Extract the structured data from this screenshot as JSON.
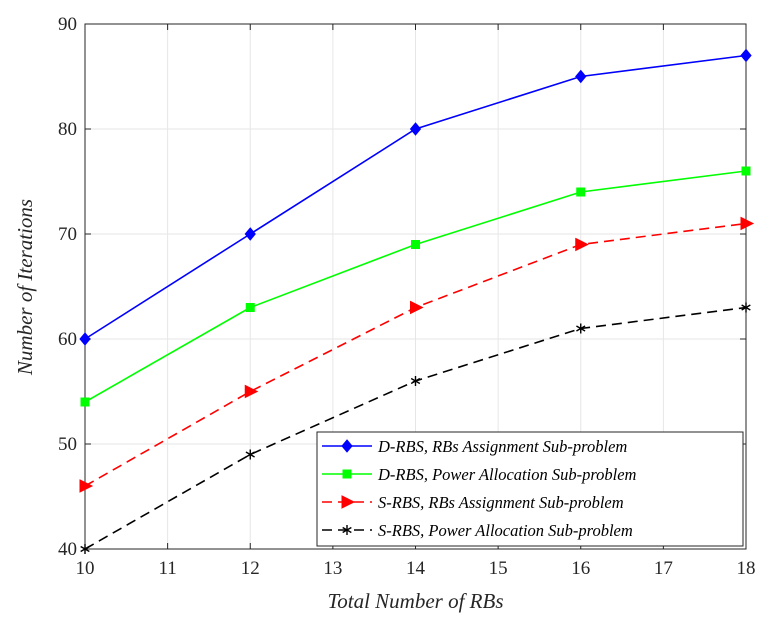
{
  "chart_data": {
    "type": "line",
    "xlabel": "Total Number of RBs",
    "ylabel": "Number of Iterations",
    "xlim": [
      10,
      18
    ],
    "ylim": [
      40,
      90
    ],
    "x_ticks": [
      "10",
      "11",
      "12",
      "13",
      "14",
      "15",
      "16",
      "17",
      "18"
    ],
    "y_ticks": [
      "40",
      "50",
      "60",
      "70",
      "80",
      "90"
    ],
    "grid": true,
    "legend_position": "bottom-right",
    "x": [
      10,
      12,
      14,
      16,
      18
    ],
    "series": [
      {
        "name": "D-RBS, RBs Assignment Sub-problem",
        "values": [
          60,
          70,
          80,
          85,
          87
        ],
        "color": "#0000ff",
        "line_style": "solid",
        "marker": "diamond"
      },
      {
        "name": "D-RBS, Power Allocation Sub-problem",
        "values": [
          54,
          63,
          69,
          74,
          76
        ],
        "color": "#00ff00",
        "line_style": "solid",
        "marker": "square"
      },
      {
        "name": "S-RBS, RBs Assignment Sub-problem",
        "values": [
          46,
          55,
          63,
          69,
          71
        ],
        "color": "#ff0000",
        "line_style": "dashed",
        "marker": "triangle-right"
      },
      {
        "name": "S-RBS, Power Allocation Sub-problem",
        "values": [
          40,
          49,
          56,
          61,
          63
        ],
        "color": "#000000",
        "line_style": "dashed",
        "marker": "asterisk"
      }
    ]
  }
}
